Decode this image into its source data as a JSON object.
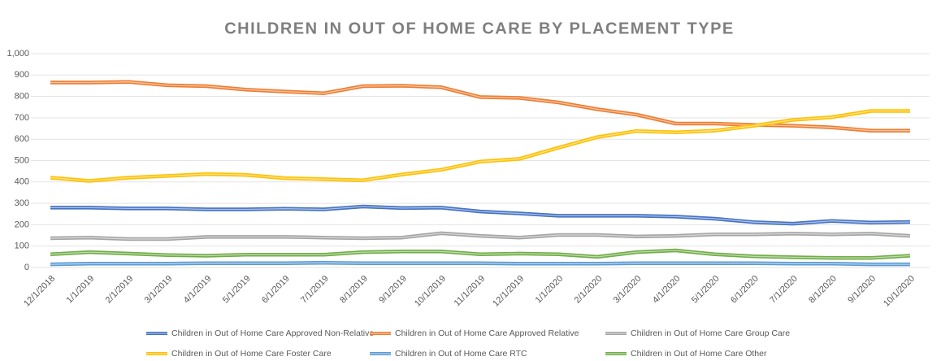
{
  "chart_data": {
    "type": "line",
    "title": "CHILDREN IN OUT OF HOME CARE BY PLACEMENT TYPE",
    "categories": [
      "12/1/2018",
      "1/1/2019",
      "2/1/2019",
      "3/1/2019",
      "4/1/2019",
      "5/1/2019",
      "6/1/2019",
      "7/1/2019",
      "8/1/2019",
      "9/1/2019",
      "10/1/2019",
      "11/1/2019",
      "12/1/2019",
      "1/1/2020",
      "2/1/2020",
      "3/1/2020",
      "4/1/2020",
      "5/1/2020",
      "6/1/2020",
      "7/1/2020",
      "8/1/2020",
      "9/1/2020",
      "10/1/2020"
    ],
    "series": [
      {
        "name": "Children in Out of Home Care Approved Non-Relative",
        "color": "#4472c4",
        "values": [
          280,
          280,
          276,
          276,
          272,
          272,
          275,
          272,
          285,
          278,
          280,
          262,
          253,
          242,
          242,
          242,
          238,
          228,
          212,
          205,
          218,
          210,
          213
        ]
      },
      {
        "name": "Children in Out of Home Care Approved Relative",
        "color": "#ed7d31",
        "values": [
          865,
          865,
          868,
          852,
          848,
          832,
          823,
          815,
          848,
          850,
          843,
          797,
          793,
          772,
          740,
          715,
          673,
          673,
          667,
          663,
          655,
          640,
          640
        ]
      },
      {
        "name": "Children in Out of Home Care Group Care",
        "color": "#a5a5a5",
        "values": [
          137,
          140,
          133,
          133,
          143,
          143,
          143,
          140,
          137,
          140,
          160,
          148,
          140,
          152,
          152,
          145,
          148,
          155,
          155,
          158,
          155,
          158,
          148
        ]
      },
      {
        "name": "Children in Out of Home Care Foster Care",
        "color": "#ffc000",
        "values": [
          420,
          405,
          420,
          428,
          437,
          433,
          418,
          413,
          408,
          435,
          457,
          495,
          508,
          560,
          610,
          638,
          632,
          640,
          663,
          690,
          703,
          732,
          732
        ]
      },
      {
        "name": "Children in Out of Home Care RTC",
        "color": "#5b9bd5",
        "values": [
          15,
          18,
          18,
          18,
          20,
          20,
          20,
          22,
          20,
          20,
          20,
          20,
          18,
          18,
          18,
          20,
          20,
          20,
          20,
          18,
          18,
          15,
          15
        ]
      },
      {
        "name": "Children in Out of Home Care Other",
        "color": "#70ad47",
        "values": [
          62,
          72,
          65,
          58,
          55,
          60,
          60,
          60,
          72,
          75,
          75,
          62,
          65,
          62,
          50,
          72,
          80,
          62,
          52,
          48,
          45,
          45,
          55
        ]
      }
    ],
    "ylim": [
      0,
      1000
    ],
    "yticks": [
      0,
      100,
      200,
      300,
      400,
      500,
      600,
      700,
      800,
      900,
      {
        "value": 1000,
        "label": "1,000"
      }
    ],
    "grid": true
  }
}
